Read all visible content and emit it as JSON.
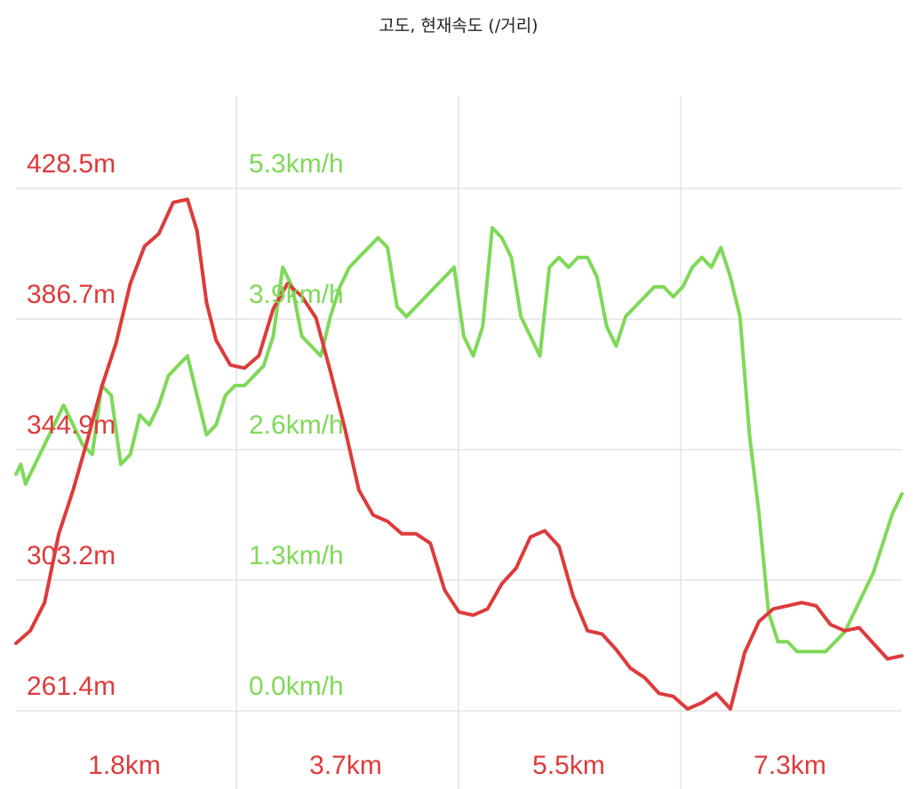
{
  "colors": {
    "elevation": "#dd3b3b",
    "speed": "#7ed957",
    "grid": "#e3e3e3",
    "title": "#222222"
  },
  "chart_data": {
    "type": "line",
    "title": "고도, 현재속도 (/거리)",
    "x_unit": "km",
    "xlim": [
      0.0,
      9.3
    ],
    "x_ticks": [
      1.8,
      3.7,
      5.5,
      7.3
    ],
    "x_tick_labels": [
      "1.8km",
      "3.7km",
      "5.5km",
      "7.3km"
    ],
    "grid": true,
    "series": [
      {
        "key": "elevation",
        "unit": "m",
        "axis": "left",
        "ylim": [
          261.4,
          428.5
        ],
        "y_ticks": [
          261.4,
          303.2,
          344.9,
          386.7,
          428.5
        ],
        "y_tick_labels": [
          "261.4m",
          "303.2m",
          "344.9m",
          "386.7m",
          "428.5m"
        ],
        "x": [
          0.0,
          0.15,
          0.3,
          0.45,
          0.6,
          0.75,
          0.9,
          1.05,
          1.2,
          1.35,
          1.5,
          1.65,
          1.8,
          1.9,
          2.0,
          2.1,
          2.25,
          2.4,
          2.55,
          2.7,
          2.85,
          3.0,
          3.15,
          3.3,
          3.45,
          3.6,
          3.75,
          3.9,
          4.05,
          4.2,
          4.35,
          4.5,
          4.65,
          4.8,
          4.95,
          5.1,
          5.25,
          5.4,
          5.55,
          5.7,
          5.85,
          6.0,
          6.15,
          6.3,
          6.45,
          6.6,
          6.75,
          6.9,
          7.05,
          7.2,
          7.35,
          7.5,
          7.65,
          7.8,
          7.95,
          8.1,
          8.25,
          8.4,
          8.55,
          8.7,
          8.85,
          9.0,
          9.15,
          9.3
        ],
        "y": [
          283,
          287,
          296,
          318,
          332,
          348,
          365,
          379,
          398,
          410,
          414,
          424,
          425,
          415,
          392,
          380,
          372,
          371,
          375,
          390,
          398,
          394,
          387,
          370,
          352,
          332,
          324,
          322,
          318,
          318,
          315,
          300,
          293,
          292,
          294,
          302,
          307,
          317,
          319,
          314,
          298,
          287,
          286,
          281,
          275,
          272,
          267,
          266,
          262,
          264,
          267,
          262,
          280,
          290,
          294,
          295,
          296,
          295,
          289,
          287,
          288,
          283,
          278,
          279
        ]
      },
      {
        "key": "speed",
        "unit": "km/h",
        "axis": "right",
        "ylim": [
          0.0,
          5.3
        ],
        "y_ticks": [
          0.0,
          1.3,
          2.6,
          3.9,
          5.3
        ],
        "y_tick_labels": [
          "0.0km/h",
          "1.3km/h",
          "2.6km/h",
          "3.9km/h",
          "5.3km/h"
        ],
        "x": [
          0.0,
          0.05,
          0.1,
          0.2,
          0.3,
          0.4,
          0.5,
          0.6,
          0.7,
          0.8,
          0.9,
          1.0,
          1.1,
          1.2,
          1.3,
          1.4,
          1.5,
          1.6,
          1.7,
          1.8,
          1.9,
          2.0,
          2.1,
          2.2,
          2.3,
          2.4,
          2.5,
          2.6,
          2.7,
          2.8,
          2.9,
          3.0,
          3.1,
          3.2,
          3.3,
          3.4,
          3.5,
          3.6,
          3.7,
          3.8,
          3.9,
          4.0,
          4.1,
          4.2,
          4.3,
          4.4,
          4.5,
          4.6,
          4.7,
          4.8,
          4.9,
          5.0,
          5.1,
          5.2,
          5.3,
          5.4,
          5.5,
          5.6,
          5.7,
          5.8,
          5.9,
          6.0,
          6.1,
          6.2,
          6.3,
          6.4,
          6.5,
          6.6,
          6.7,
          6.8,
          6.9,
          7.0,
          7.1,
          7.2,
          7.3,
          7.4,
          7.5,
          7.6,
          7.7,
          7.8,
          7.9,
          8.0,
          8.1,
          8.2,
          8.3,
          8.4,
          8.5,
          8.6,
          8.7,
          8.8,
          8.9,
          9.0,
          9.1,
          9.2,
          9.3
        ],
        "y": [
          2.4,
          2.5,
          2.3,
          2.5,
          2.7,
          2.9,
          3.1,
          2.9,
          2.7,
          2.6,
          3.3,
          3.2,
          2.5,
          2.6,
          3.0,
          2.9,
          3.1,
          3.4,
          3.5,
          3.6,
          3.2,
          2.8,
          2.9,
          3.2,
          3.3,
          3.3,
          3.4,
          3.5,
          3.8,
          4.5,
          4.3,
          3.8,
          3.7,
          3.6,
          4.0,
          4.3,
          4.5,
          4.6,
          4.7,
          4.8,
          4.7,
          4.1,
          4.0,
          4.1,
          4.2,
          4.3,
          4.4,
          4.5,
          3.8,
          3.6,
          3.9,
          4.9,
          4.8,
          4.6,
          4.0,
          3.8,
          3.6,
          4.5,
          4.6,
          4.5,
          4.6,
          4.6,
          4.4,
          3.9,
          3.7,
          4.0,
          4.1,
          4.2,
          4.3,
          4.3,
          4.2,
          4.3,
          4.5,
          4.6,
          4.5,
          4.7,
          4.4,
          4.0,
          2.8,
          2.0,
          1.0,
          0.7,
          0.7,
          0.6,
          0.6,
          0.6,
          0.6,
          0.7,
          0.8,
          1.0,
          1.2,
          1.4,
          1.7,
          2.0,
          2.2
        ]
      }
    ]
  }
}
